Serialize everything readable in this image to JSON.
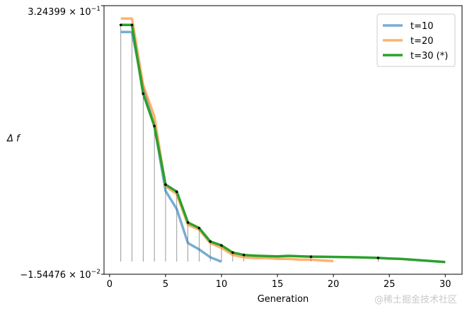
{
  "chart_data": {
    "type": "line",
    "xlabel": "Generation",
    "ylabel": "Δ f",
    "xlim": [
      -0.5,
      31.5
    ],
    "ylim": [
      -0.0154476,
      0.324399
    ],
    "x_ticks": [
      0,
      5,
      10,
      15,
      20,
      25,
      30
    ],
    "y_tick_labels": {
      "top": {
        "mantissa": "3.24399",
        "times": "× 10",
        "exponent": "−1"
      },
      "bottom": {
        "mantissa": "−1.54476",
        "times": "× 10",
        "exponent": "−2"
      }
    },
    "legend_position": "top-right",
    "series": [
      {
        "name": "t=10",
        "color": "#1f77b4",
        "opacity": 0.6,
        "x": [
          1,
          2,
          3,
          4,
          5,
          6,
          7,
          8,
          9,
          10
        ],
        "y": [
          0.291,
          0.291,
          0.22,
          0.172,
          0.09,
          0.067,
          0.024,
          0.016,
          0.006,
          0.0005
        ]
      },
      {
        "name": "t=20",
        "color": "#ff7f0e",
        "opacity": 0.6,
        "x": [
          1,
          2,
          3,
          4,
          5,
          6,
          7,
          8,
          9,
          10,
          11,
          12,
          13,
          14,
          15,
          16,
          17,
          18,
          19,
          20
        ],
        "y": [
          0.308,
          0.308,
          0.224,
          0.184,
          0.096,
          0.086,
          0.047,
          0.041,
          0.024,
          0.018,
          0.009,
          0.006,
          0.005,
          0.005,
          0.004,
          0.004,
          0.003,
          0.003,
          0.002,
          0.0012
        ]
      },
      {
        "name": "t=30 (*)",
        "color": "#2ca02c",
        "opacity": 1.0,
        "x": [
          1,
          2,
          3,
          4,
          5,
          6,
          7,
          8,
          9,
          10,
          11,
          12,
          13,
          14,
          15,
          16,
          17,
          18,
          19,
          20,
          21,
          22,
          23,
          24,
          25,
          26,
          27,
          28,
          29,
          30
        ],
        "y": [
          0.3,
          0.3,
          0.213,
          0.172,
          0.098,
          0.089,
          0.05,
          0.043,
          0.026,
          0.021,
          0.012,
          0.009,
          0.008,
          0.0075,
          0.0072,
          0.0078,
          0.0073,
          0.0068,
          0.0066,
          0.0065,
          0.0063,
          0.006,
          0.0057,
          0.0052,
          0.0045,
          0.004,
          0.003,
          0.002,
          0.001,
          0.0
        ]
      }
    ],
    "improvement_markers": {
      "x": [
        1,
        2,
        3,
        4,
        5,
        6,
        7,
        8,
        9,
        10,
        11,
        12,
        18,
        24
      ],
      "y": [
        0.3,
        0.3,
        0.213,
        0.172,
        0.098,
        0.089,
        0.05,
        0.043,
        0.026,
        0.021,
        0.012,
        0.009,
        0.0068,
        0.0052
      ]
    }
  },
  "watermark": "@稀土掘金技术社区"
}
